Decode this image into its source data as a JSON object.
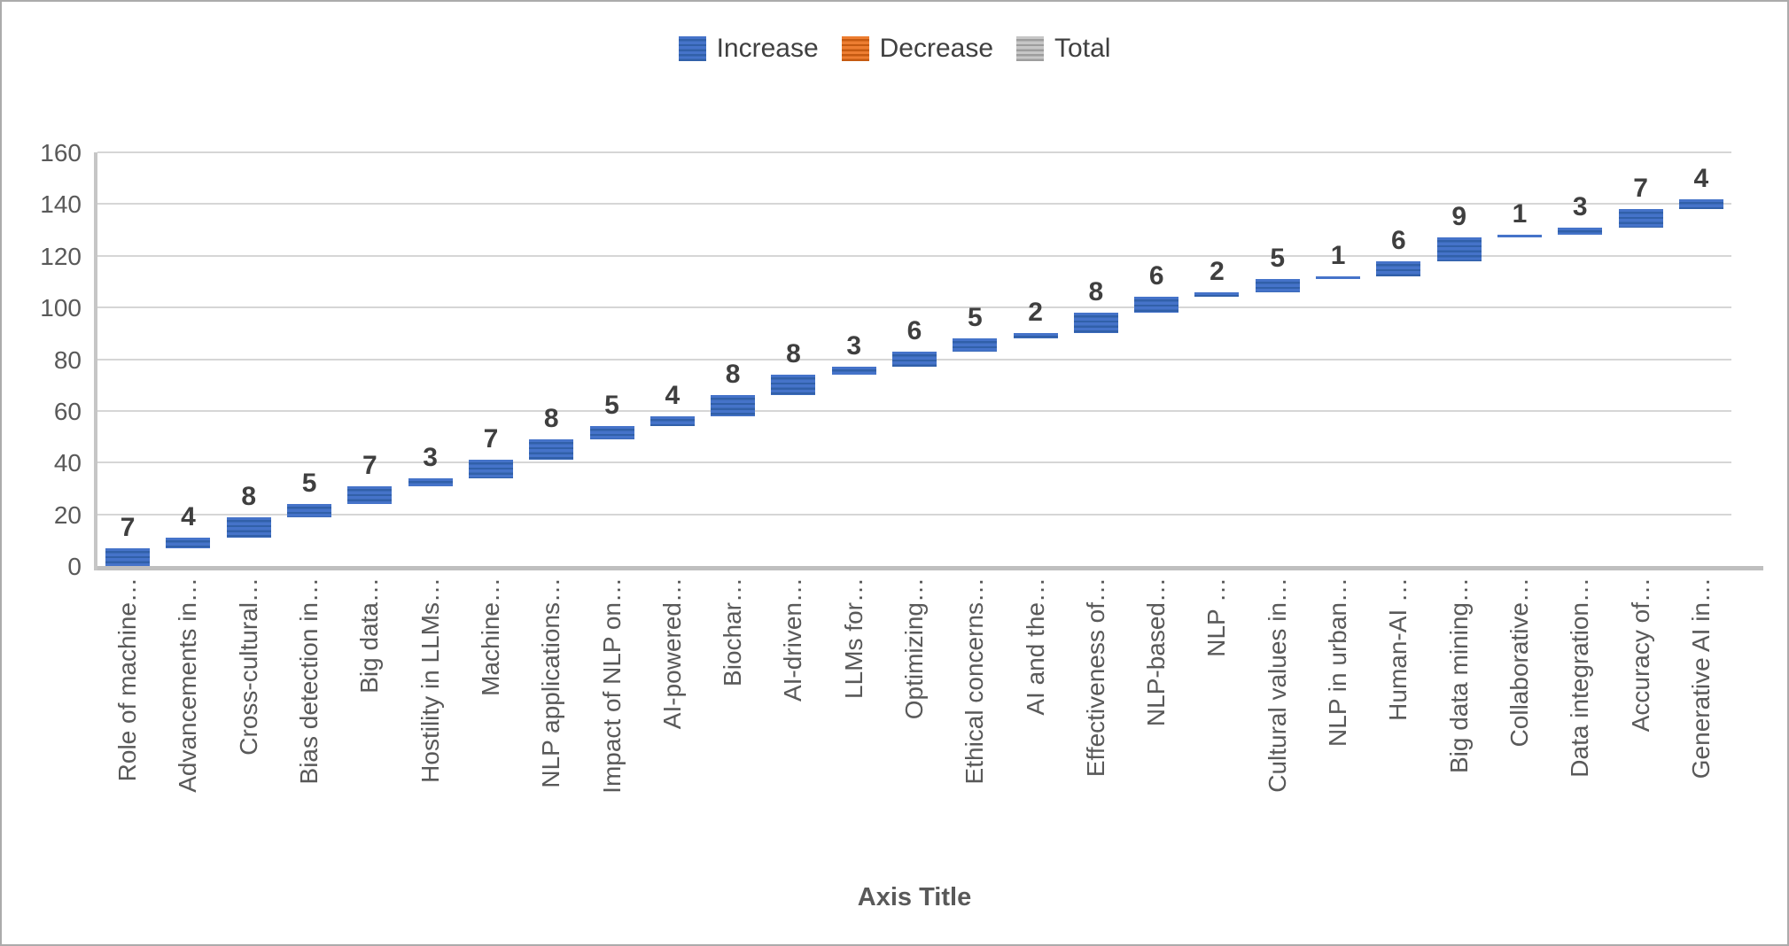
{
  "legend": {
    "items": [
      {
        "id": "increase",
        "label": "Increase",
        "color": "#4472C4",
        "stripe_color": "#2E5697"
      },
      {
        "id": "decrease",
        "label": "Decrease",
        "color": "#ED7D31",
        "stripe_color": "#C55A11"
      },
      {
        "id": "total",
        "label": "Total",
        "color": "#BFBFBF",
        "stripe_color": "#9D9D9D"
      }
    ]
  },
  "axes": {
    "x_title": "Axis Title",
    "y_ticks": [
      "0",
      "20",
      "40",
      "60",
      "80",
      "100",
      "120",
      "140",
      "160"
    ]
  },
  "chart_data": {
    "type": "bar",
    "variant": "waterfall",
    "title": "",
    "xlabel": "Axis Title",
    "ylabel": "",
    "ylim": [
      0,
      160
    ],
    "ytick_step": 20,
    "grid": true,
    "legend": [
      "Increase",
      "Decrease",
      "Total"
    ],
    "legend_position": "top",
    "series_shown": "Increase",
    "categories": [
      "Role of machine…",
      "Advancements in…",
      "Cross-cultural…",
      "Bias detection in…",
      "Big data…",
      "Hostility in LLMs…",
      "Machine…",
      "NLP applications…",
      "Impact of NLP on…",
      "AI-powered…",
      "Biochar…",
      "AI-driven…",
      "LLMs for…",
      "Optimizing…",
      "Ethical concerns…",
      "AI and the…",
      "Effectiveness of…",
      "NLP-based…",
      "NLP …",
      "Cultural values in…",
      "NLP in urban…",
      "Human-AI …",
      "Big data mining…",
      "Collaborative…",
      "Data integration…",
      "Accuracy of…",
      "Generative AI in…"
    ],
    "values": [
      7,
      4,
      8,
      5,
      7,
      3,
      7,
      8,
      5,
      4,
      8,
      8,
      3,
      6,
      5,
      2,
      8,
      6,
      2,
      5,
      1,
      6,
      9,
      1,
      3,
      7,
      4
    ],
    "data_labels": [
      7,
      4,
      8,
      5,
      7,
      3,
      7,
      8,
      5,
      4,
      8,
      8,
      3,
      6,
      5,
      2,
      8,
      6,
      2,
      5,
      1,
      6,
      9,
      1,
      3,
      7,
      4
    ],
    "cumulative": [
      7,
      11,
      19,
      24,
      31,
      34,
      41,
      49,
      54,
      58,
      66,
      74,
      77,
      83,
      88,
      90,
      98,
      104,
      106,
      111,
      112,
      118,
      127,
      128,
      131,
      138,
      142
    ]
  }
}
